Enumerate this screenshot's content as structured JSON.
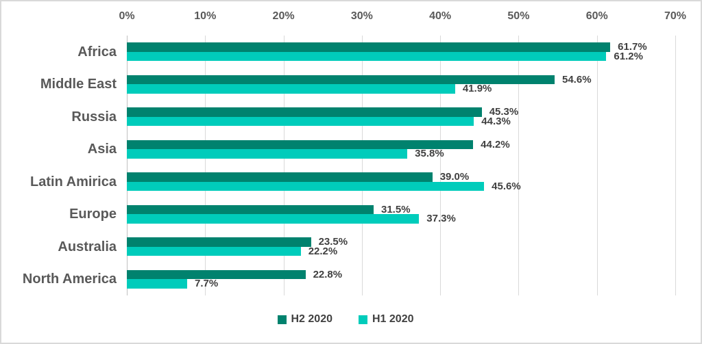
{
  "chart_data": {
    "type": "bar",
    "orientation": "horizontal",
    "title": "",
    "categories": [
      "Africa",
      "Middle East",
      "Russia",
      "Asia",
      "Latin Amirica",
      "Europe",
      "Australia",
      "North America"
    ],
    "series": [
      {
        "name": "H2 2020",
        "color": "#00826E",
        "values": [
          61.7,
          54.6,
          45.3,
          44.2,
          39.0,
          31.5,
          23.5,
          22.8
        ],
        "value_labels": [
          "61.7%",
          "54.6%",
          "45.3%",
          "44.2%",
          "39.0%",
          "31.5%",
          "23.5%",
          "22.8%"
        ]
      },
      {
        "name": "H1 2020",
        "color": "#00CCBB",
        "values": [
          61.2,
          41.9,
          44.3,
          35.8,
          45.6,
          37.3,
          22.2,
          7.7
        ],
        "value_labels": [
          "61.2%",
          "41.9%",
          "44.3%",
          "35.8%",
          "45.6%",
          "37.3%",
          "22.2%",
          "7.7%"
        ]
      }
    ],
    "x_axis": {
      "position": "top",
      "min": 0,
      "max": 70,
      "tick_step": 10,
      "tick_labels": [
        "0%",
        "10%",
        "20%",
        "30%",
        "40%",
        "50%",
        "60%",
        "70%"
      ]
    },
    "grid": true,
    "legend": {
      "position": "bottom",
      "entries": [
        {
          "label": "H2 2020",
          "color": "#00826E"
        },
        {
          "label": "H1 2020",
          "color": "#00CCBB"
        }
      ]
    },
    "colors": {
      "background": "#FFFFFF",
      "frame_border": "#D9D9D9",
      "gridline": "#D9D9D9",
      "axis_line": "#BFBFBF",
      "tick_text": "#595959",
      "category_text": "#595959",
      "value_text": "#404040",
      "legend_text": "#404040"
    }
  }
}
